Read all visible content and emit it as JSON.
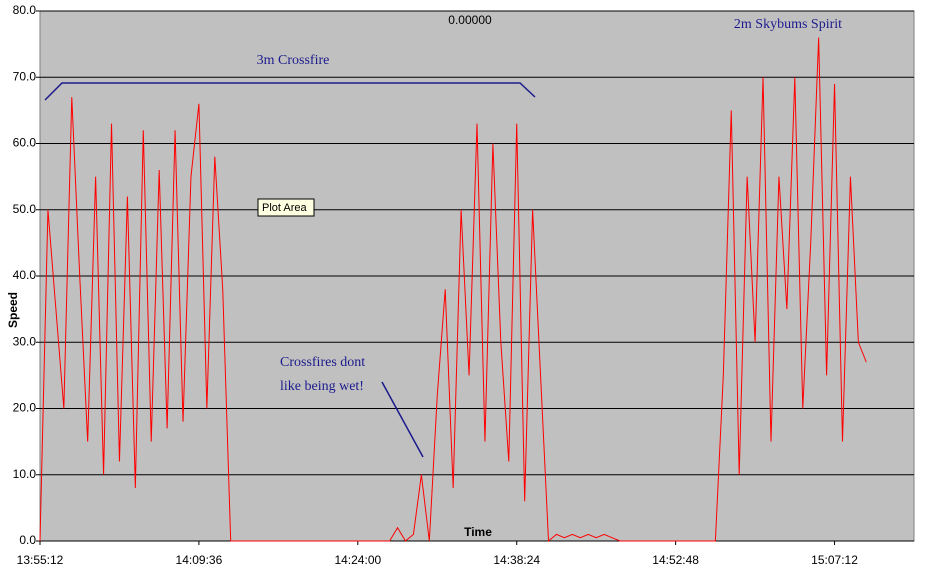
{
  "chart_data": {
    "type": "line",
    "annotations": [
      "0.00000",
      "3m Crossfire",
      "2m Skybums Spirit",
      "Crossfires dont",
      "like being wet!",
      "Plot Area"
    ],
    "x_label": "Time",
    "y_label": "Speed",
    "categories": [
      "13:55:12",
      null,
      null,
      null,
      null,
      null,
      null,
      null,
      null,
      null,
      null,
      null,
      null,
      null,
      null,
      null,
      null,
      null,
      null,
      null,
      "14:09:36",
      null,
      null,
      null,
      null,
      null,
      null,
      null,
      null,
      null,
      null,
      null,
      null,
      null,
      null,
      null,
      null,
      null,
      null,
      null,
      "14:24:00",
      null,
      null,
      null,
      null,
      null,
      null,
      null,
      null,
      null,
      null,
      null,
      null,
      null,
      null,
      null,
      null,
      null,
      null,
      null,
      "14:38:24",
      null,
      null,
      null,
      null,
      null,
      null,
      null,
      null,
      null,
      null,
      null,
      null,
      null,
      null,
      null,
      null,
      null,
      null,
      null,
      "14:52:48",
      null,
      null,
      null,
      null,
      null,
      null,
      null,
      null,
      null,
      null,
      null,
      null,
      null,
      null,
      null,
      null,
      null,
      null,
      null,
      "15:07:12",
      null,
      null,
      null,
      null
    ],
    "series": [
      {
        "name": "Speed",
        "color": "#ff0000",
        "values": [
          0,
          50,
          35,
          20,
          67,
          40,
          15,
          55,
          10,
          63,
          12,
          52,
          8,
          62,
          15,
          56,
          17,
          62,
          18,
          55,
          66,
          20,
          58,
          38,
          0,
          0,
          0,
          0,
          0,
          0,
          0,
          0,
          0,
          0,
          0,
          0,
          0,
          0,
          0,
          0,
          0,
          0,
          0,
          0,
          0,
          2,
          0,
          1,
          10,
          0,
          22,
          38,
          8,
          50,
          25,
          63,
          15,
          60,
          30,
          12,
          63,
          6,
          50,
          25,
          0,
          1,
          0.5,
          1,
          0.5,
          1,
          0.5,
          1,
          0.5,
          0,
          0,
          0,
          0,
          0,
          0,
          0,
          0,
          0,
          0,
          0,
          0,
          0,
          25,
          65,
          10,
          55,
          30,
          70,
          15,
          55,
          35,
          70,
          20,
          45,
          76,
          25,
          69,
          15,
          55,
          30,
          27
        ]
      }
    ],
    "xlim": [
      0,
      110
    ],
    "ylim": [
      0,
      80
    ],
    "yticks": [
      {
        "value": 0,
        "label": "0.0"
      },
      {
        "value": 10,
        "label": "10.0"
      },
      {
        "value": 20,
        "label": "20.0"
      },
      {
        "value": 30,
        "label": "30.0"
      },
      {
        "value": 40,
        "label": "40.0"
      },
      {
        "value": 50,
        "label": "50.0"
      },
      {
        "value": 60,
        "label": "60.0"
      },
      {
        "value": 70,
        "label": "70.0"
      },
      {
        "value": 80,
        "label": "80.0"
      }
    ],
    "grid": true
  }
}
